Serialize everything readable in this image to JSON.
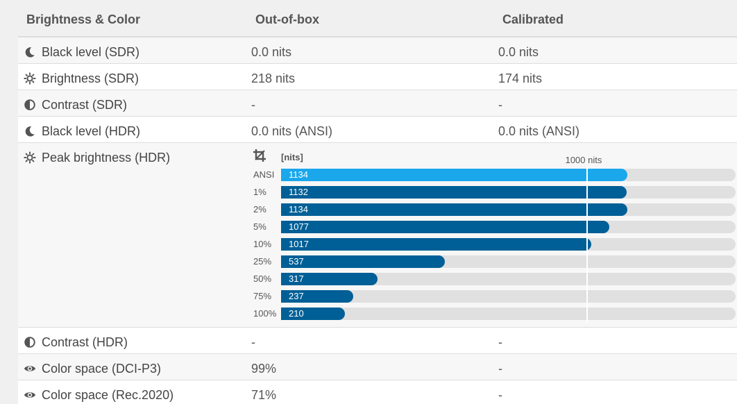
{
  "header": {
    "col1": "Brightness & Color",
    "col2": "Out-of-box",
    "col3": "Calibrated"
  },
  "rows": [
    {
      "label": "Black level (SDR)",
      "icon": "moon-icon",
      "oob": "0.0 nits",
      "cal": "0.0 nits"
    },
    {
      "label": "Brightness (SDR)",
      "icon": "sun-icon",
      "oob": "218 nits",
      "cal": "174 nits"
    },
    {
      "label": "Contrast (SDR)",
      "icon": "contrast-icon",
      "oob": "-",
      "cal": "-"
    },
    {
      "label": "Black level (HDR)",
      "icon": "moon-icon",
      "oob": "0.0 nits (ANSI)",
      "cal": "0.0 nits (ANSI)"
    },
    {
      "label": "Peak brightness (HDR)",
      "icon": "sun-icon"
    },
    {
      "label": "Contrast (HDR)",
      "icon": "contrast-icon",
      "oob": "-",
      "cal": "-"
    },
    {
      "label": "Color space (DCI-P3)",
      "icon": "eye-icon",
      "oob": "99%",
      "cal": "-"
    },
    {
      "label": "Color space (Rec.2020)",
      "icon": "eye-icon",
      "oob": "71%",
      "cal": "-"
    }
  ],
  "chart_data": {
    "type": "bar",
    "orientation": "horizontal",
    "unit_label": "[nits]",
    "icon": "crop-icon",
    "categories": [
      "ANSI",
      "1%",
      "2%",
      "5%",
      "10%",
      "25%",
      "50%",
      "75%",
      "100%"
    ],
    "values": [
      1134,
      1132,
      1134,
      1077,
      1017,
      537,
      317,
      237,
      210
    ],
    "highlight_index": 0,
    "xlim": [
      0,
      1490
    ],
    "reference": {
      "value": 1000,
      "label": "1000 nits"
    },
    "colors": {
      "highlight": "#1aa7ec",
      "bar": "#005f96",
      "track": "#e0e0e0"
    }
  },
  "colors": {
    "icon": "#555555"
  }
}
